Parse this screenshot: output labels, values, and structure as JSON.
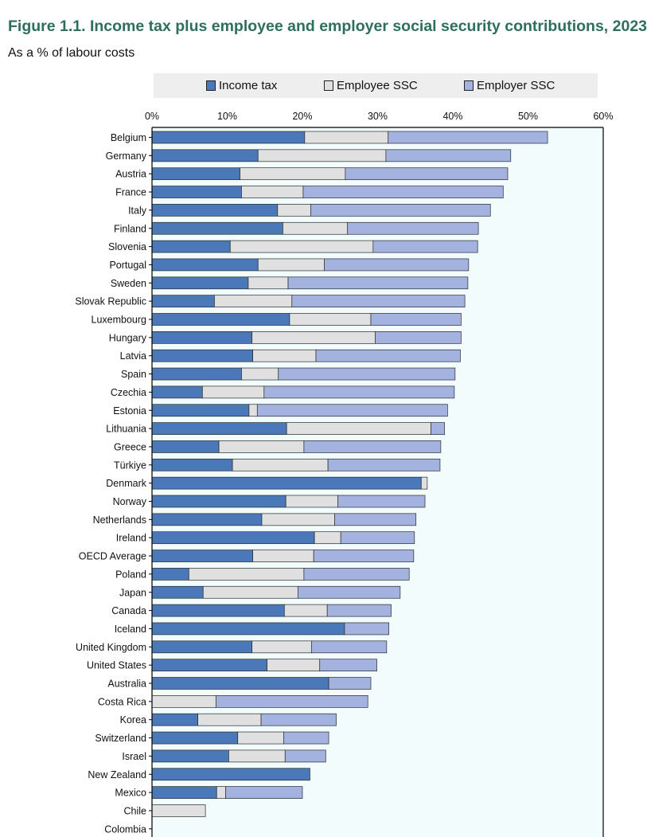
{
  "figure": {
    "title": "Figure 1.1. Income tax plus employee and employer social security contributions, 2023",
    "subtitle": "As a % of labour costs"
  },
  "legend": {
    "items": [
      {
        "label": "Income tax",
        "color": "#4a78b8"
      },
      {
        "label": "Employee SSC",
        "color": "#e0e0e0"
      },
      {
        "label": "Employer SSC",
        "color": "#a4b2e0"
      }
    ]
  },
  "chart_data": {
    "type": "bar",
    "orientation": "horizontal",
    "stacked": true,
    "xlim": [
      0,
      60
    ],
    "xticks": [
      "0%",
      "10%",
      "20%",
      "30%",
      "40%",
      "50%",
      "60%"
    ],
    "xtick_values": [
      0,
      10,
      20,
      30,
      40,
      50,
      60
    ],
    "legend_position": "top",
    "grid": false,
    "plot_background": "#f2fcfd",
    "categories": [
      "Belgium",
      "Germany",
      "Austria",
      "France",
      "Italy",
      "Finland",
      "Slovenia",
      "Portugal",
      "Sweden",
      "Slovak Republic",
      "Luxembourg",
      "Hungary",
      "Latvia",
      "Spain",
      "Czechia",
      "Estonia",
      "Lithuania",
      "Greece",
      "Türkiye",
      "Denmark",
      "Norway",
      "Netherlands",
      "Ireland",
      "OECD Average",
      "Poland",
      "Japan",
      "Canada",
      "Iceland",
      "United Kingdom",
      "United States",
      "Australia",
      "Costa Rica",
      "Korea",
      "Switzerland",
      "Israel",
      "New Zealand",
      "Mexico",
      "Chile",
      "Colombia"
    ],
    "series": [
      {
        "name": "Income tax",
        "color": "#4a78b8",
        "values": [
          20.3,
          14.1,
          11.7,
          11.9,
          16.7,
          17.4,
          10.4,
          14.1,
          12.8,
          8.3,
          18.3,
          13.3,
          13.4,
          11.9,
          6.7,
          12.9,
          17.9,
          8.9,
          10.7,
          35.8,
          17.8,
          14.6,
          21.6,
          13.4,
          4.9,
          6.8,
          17.6,
          25.6,
          13.3,
          15.3,
          23.5,
          0.0,
          6.1,
          11.4,
          10.2,
          21.0,
          8.6,
          0.0,
          0.0
        ]
      },
      {
        "name": "Employee SSC",
        "color": "#e0e0e0",
        "values": [
          11.1,
          17.0,
          14.0,
          8.2,
          4.4,
          8.6,
          19.0,
          8.8,
          5.3,
          10.3,
          10.8,
          16.4,
          8.4,
          4.9,
          8.2,
          1.1,
          19.2,
          11.3,
          12.7,
          0.8,
          6.9,
          9.7,
          3.5,
          8.1,
          15.3,
          12.6,
          5.7,
          0.0,
          7.9,
          7.0,
          0.0,
          8.5,
          8.4,
          6.1,
          7.5,
          0.0,
          1.2,
          7.1,
          0.0
        ]
      },
      {
        "name": "Employer SSC",
        "color": "#a4b2e0",
        "values": [
          21.2,
          16.6,
          21.6,
          26.6,
          23.9,
          17.4,
          13.9,
          19.2,
          23.9,
          23.0,
          12.0,
          11.4,
          19.2,
          23.5,
          25.3,
          25.3,
          1.8,
          18.2,
          14.9,
          0.0,
          11.6,
          10.8,
          9.8,
          13.3,
          14.0,
          13.6,
          8.5,
          5.9,
          10.0,
          7.6,
          5.6,
          20.2,
          10.0,
          6.0,
          5.4,
          0.0,
          10.2,
          0.0,
          0.0
        ]
      }
    ]
  }
}
